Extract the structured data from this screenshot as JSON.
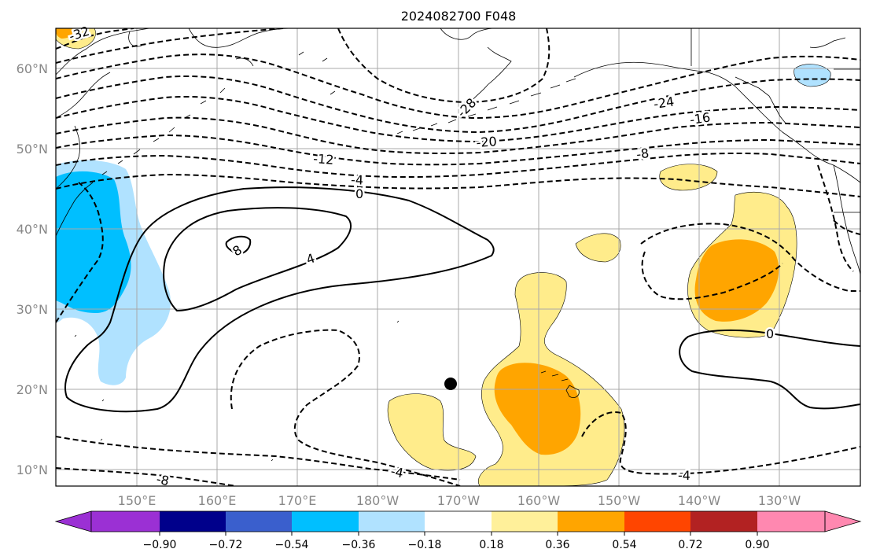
{
  "title": "2024082700 F048",
  "map": {
    "lat_labels": [
      "60°N",
      "50°N",
      "40°N",
      "30°N",
      "20°N",
      "10°N"
    ],
    "lon_labels": [
      "150°E",
      "160°E",
      "170°E",
      "180°W",
      "170°W",
      "160°W",
      "150°W",
      "140°W",
      "130°W"
    ],
    "contour_labels": [
      "-32",
      "-28",
      "-24",
      "-20",
      "-16",
      "-12",
      "-8",
      "-4",
      "0",
      "4",
      "8",
      "-8",
      "-4",
      "-4",
      "0",
      "-8"
    ],
    "marker": {
      "name": "location-marker",
      "lat": 20.7,
      "lon": -171.0
    }
  },
  "colorbar": {
    "tick_labels": [
      "−0.90",
      "−0.72",
      "−0.54",
      "−0.36",
      "−0.18",
      "0.18",
      "0.36",
      "0.54",
      "0.72",
      "0.90"
    ],
    "colors": [
      "#9b30d4",
      "#00008b",
      "#3a5fcd",
      "#00bfff",
      "#b0e2ff",
      "#ffffff",
      "#fff09a",
      "#ffa500",
      "#ff4500",
      "#b22222",
      "#ff88b0"
    ]
  },
  "fill_colors": {
    "light_yellow": "#ffec8b",
    "orange": "#ffa500",
    "deep_sky_blue": "#00bfff",
    "light_blue": "#b0e2ff"
  }
}
